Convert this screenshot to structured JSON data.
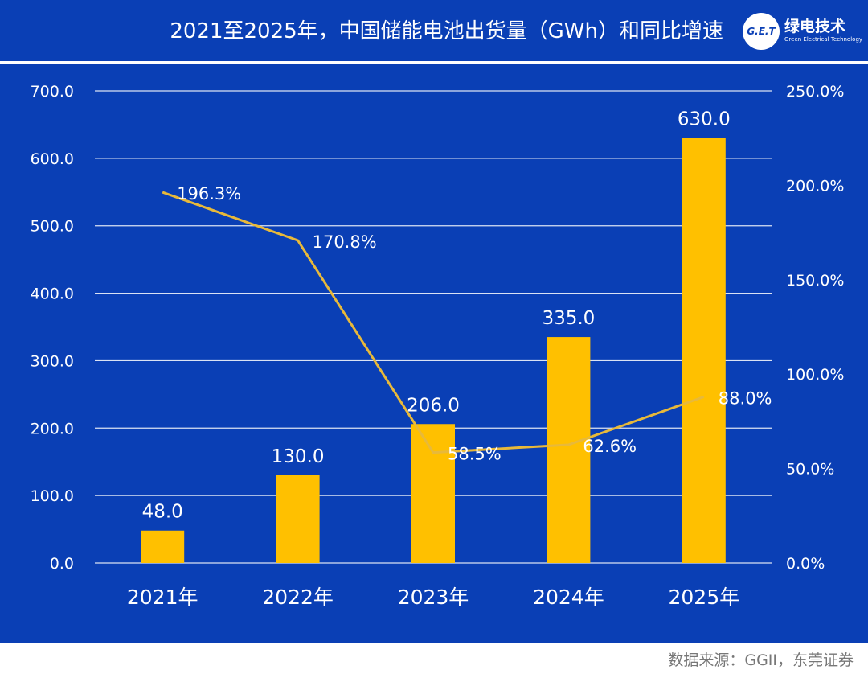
{
  "title": "2021至2025年，中国储能电池出货量（GWh）和同比增速",
  "logo": {
    "mark": "G.E.T",
    "name_cn": "绿电技术",
    "name_en": "Green Electrical Technology"
  },
  "source": "数据来源：GGII，东莞证券",
  "colors": {
    "background": "#0a3fb5",
    "bar": "#ffc000",
    "line": "#e8b93a",
    "grid": "#ffffff",
    "text": "#ffffff"
  },
  "chart_data": {
    "type": "bar",
    "categories": [
      "2021年",
      "2022年",
      "2023年",
      "2024年",
      "2025年"
    ],
    "series": [
      {
        "name": "出货量（GWh）",
        "type": "bar",
        "axis": "left",
        "values": [
          48.0,
          130.0,
          206.0,
          335.0,
          630.0
        ],
        "labels": [
          "48.0",
          "130.0",
          "206.0",
          "335.0",
          "630.0"
        ]
      },
      {
        "name": "同比增速",
        "type": "line",
        "axis": "right",
        "values": [
          196.3,
          170.8,
          58.5,
          62.6,
          88.0
        ],
        "labels": [
          "196.3%",
          "170.8%",
          "58.5%",
          "62.6%",
          "88.0%"
        ]
      }
    ],
    "y_left": {
      "min": 0,
      "max": 700,
      "ticks": [
        "0.0",
        "100.0",
        "200.0",
        "300.0",
        "400.0",
        "500.0",
        "600.0",
        "700.0"
      ]
    },
    "y_right": {
      "min": 0,
      "max": 250,
      "ticks": [
        "0.0%",
        "50.0%",
        "100.0%",
        "150.0%",
        "200.0%",
        "250.0%"
      ]
    },
    "grid": true
  }
}
